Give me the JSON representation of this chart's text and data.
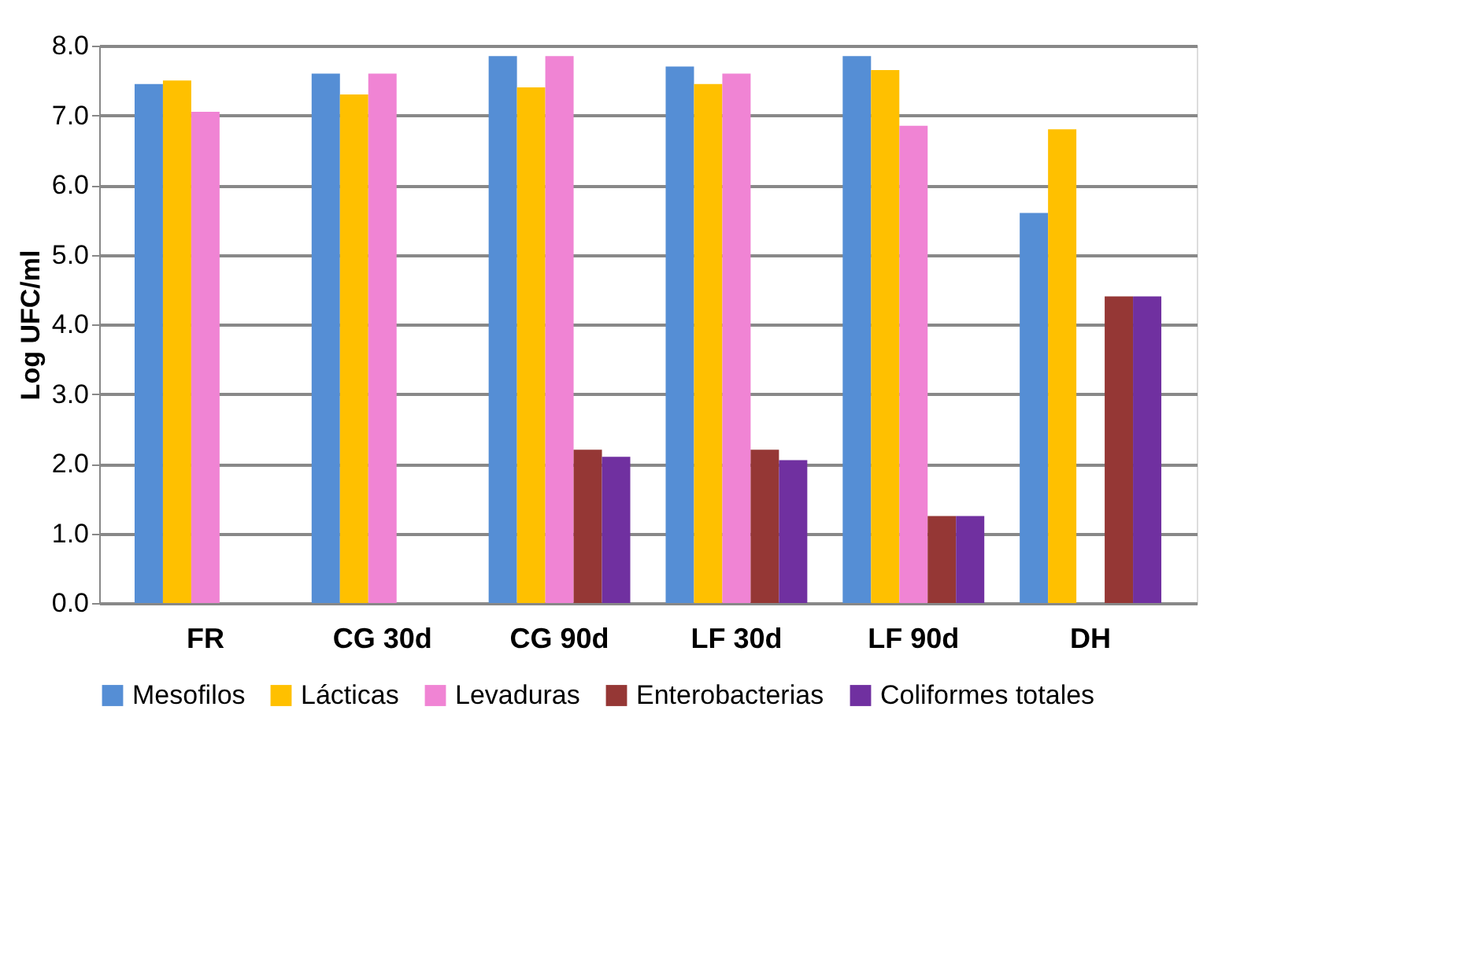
{
  "chart_data": {
    "type": "bar",
    "ylabel": "Log UFC/ml",
    "categories": [
      "FR",
      "CG 30d",
      "CG 90d",
      "LF 30d",
      "LF 90d",
      "DH"
    ],
    "series": [
      {
        "name": "Mesofilos",
        "color": "#558ed5",
        "values": [
          7.45,
          7.6,
          7.85,
          7.7,
          7.85,
          5.6
        ]
      },
      {
        "name": "Lácticas",
        "color": "#ffc000",
        "values": [
          7.5,
          7.3,
          7.4,
          7.45,
          7.65,
          6.8
        ]
      },
      {
        "name": "Levaduras",
        "color": "#f084d4",
        "values": [
          7.05,
          7.6,
          7.85,
          7.6,
          6.85,
          0
        ]
      },
      {
        "name": "Enterobacterias",
        "color": "#953735",
        "values": [
          0,
          0,
          2.2,
          2.2,
          1.25,
          4.4
        ]
      },
      {
        "name": "Coliformes totales",
        "color": "#7030a0",
        "values": [
          0,
          0,
          2.1,
          2.05,
          1.25,
          4.4
        ]
      }
    ],
    "ylim": [
      0,
      8
    ],
    "yticks": [
      {
        "value": 0,
        "label": "0.0"
      },
      {
        "value": 1,
        "label": "1.0"
      },
      {
        "value": 2,
        "label": "2.0"
      },
      {
        "value": 3,
        "label": "3.0"
      },
      {
        "value": 4,
        "label": "4.0"
      },
      {
        "value": 5,
        "label": "5.0"
      },
      {
        "value": 6,
        "label": "6.0"
      },
      {
        "value": 7,
        "label": "7.0"
      },
      {
        "value": 8,
        "label": "8.0"
      }
    ],
    "grid": "y",
    "legend": "bottom"
  }
}
